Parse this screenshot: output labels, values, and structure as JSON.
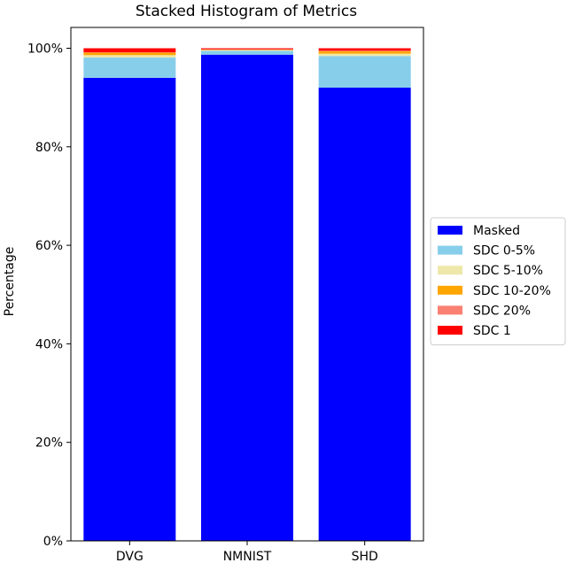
{
  "chart_data": {
    "type": "bar",
    "stacked": true,
    "title": "Stacked Histogram of Metrics",
    "xlabel": "",
    "ylabel": "Percentage",
    "ylim": [
      0,
      100
    ],
    "yticks": [
      "0%",
      "20%",
      "40%",
      "60%",
      "80%",
      "100%"
    ],
    "categories": [
      "DVG",
      "NMNIST",
      "SHD"
    ],
    "series": [
      {
        "name": "Masked",
        "color": "#0000ff",
        "values": [
          94.0,
          98.7,
          92.0
        ]
      },
      {
        "name": "SDC 0-5%",
        "color": "#87ceeb",
        "values": [
          4.1,
          0.8,
          6.4
        ]
      },
      {
        "name": "SDC 5-10%",
        "color": "#eee8aa",
        "values": [
          0.5,
          0.1,
          0.5
        ]
      },
      {
        "name": "SDC 10-20%",
        "color": "#ffa500",
        "values": [
          0.5,
          0.1,
          0.5
        ]
      },
      {
        "name": "SDC 20%",
        "color": "#fa8072",
        "values": [
          0.1,
          0.1,
          0.1
        ]
      },
      {
        "name": "SDC 1",
        "color": "#ff0000",
        "values": [
          0.8,
          0.2,
          0.5
        ]
      }
    ],
    "legend": "center-right",
    "grid": false
  }
}
